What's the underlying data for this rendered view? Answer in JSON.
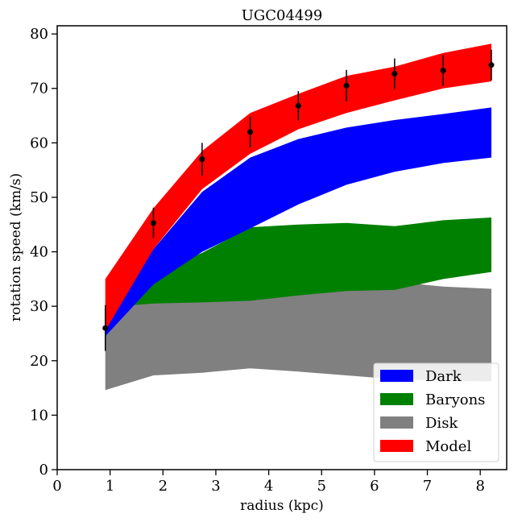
{
  "chart_data": {
    "type": "area",
    "title": "UGC04499",
    "xlabel": "radius (kpc)",
    "ylabel": "rotation speed (km/s)",
    "xlim": [
      0,
      8.5
    ],
    "ylim": [
      0,
      81.5
    ],
    "xticks": [
      0,
      1,
      2,
      3,
      4,
      5,
      6,
      7,
      8
    ],
    "yticks": [
      0,
      10,
      20,
      30,
      40,
      50,
      60,
      70,
      80
    ],
    "grid": false,
    "legend_position": "bottom-right",
    "x": [
      0.91,
      1.82,
      2.74,
      3.65,
      4.56,
      5.47,
      6.38,
      7.3,
      8.21
    ],
    "bands": [
      {
        "name": "Disk",
        "color": "#808080",
        "lower": [
          14.6,
          17.3,
          17.8,
          18.6,
          18.0,
          17.3,
          16.6,
          16.3,
          16.2
        ],
        "upper": [
          29.0,
          35.5,
          36.5,
          38.5,
          37.3,
          36.0,
          34.5,
          33.6,
          33.2
        ]
      },
      {
        "name": "Baryons",
        "color": "#008000",
        "lower": [
          29.8,
          30.5,
          30.7,
          31.0,
          32.0,
          32.8,
          33.0,
          35.0,
          36.3
        ],
        "upper": [
          30.5,
          36.0,
          39.8,
          44.5,
          45.0,
          45.3,
          44.7,
          45.8,
          46.3
        ]
      },
      {
        "name": "Dark",
        "color": "#0000ff",
        "lower": [
          24.5,
          34.0,
          40.0,
          44.3,
          48.7,
          52.3,
          54.7,
          56.3,
          57.3
        ],
        "upper": [
          27.0,
          40.5,
          51.0,
          57.3,
          60.7,
          62.8,
          64.2,
          65.3,
          66.5
        ]
      },
      {
        "name": "Model",
        "color": "#ff0000",
        "lower": [
          25.5,
          40.5,
          51.5,
          58.0,
          62.5,
          65.5,
          67.8,
          70.0,
          71.3
        ],
        "upper": [
          35.0,
          48.0,
          58.5,
          65.5,
          69.0,
          72.3,
          74.0,
          76.5,
          78.2
        ]
      }
    ],
    "observations": {
      "color": "#000000",
      "y": [
        26.0,
        45.3,
        57.0,
        62.0,
        66.8,
        70.5,
        72.7,
        73.3,
        74.3
      ],
      "err": [
        4.2,
        2.8,
        3.0,
        2.8,
        2.7,
        2.9,
        2.8,
        2.8,
        2.8
      ]
    },
    "legend_order": [
      "Dark",
      "Baryons",
      "Disk",
      "Model"
    ]
  }
}
